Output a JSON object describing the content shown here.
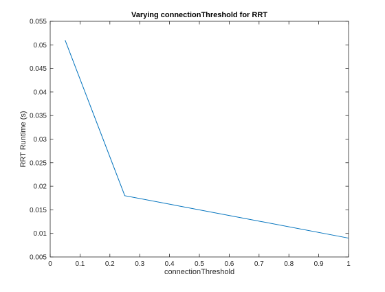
{
  "chart_data": {
    "type": "line",
    "title": "Varying connectionThreshold for RRT",
    "xlabel": "connectionThreshold",
    "ylabel": "RRT Runtime (s)",
    "xlim": [
      0,
      1
    ],
    "ylim": [
      0.005,
      0.055
    ],
    "xticks": [
      "0",
      "0.1",
      "0.2",
      "0.3",
      "0.4",
      "0.5",
      "0.6",
      "0.7",
      "0.8",
      "0.9",
      "1"
    ],
    "yticks": [
      "0.005",
      "0.01",
      "0.015",
      "0.02",
      "0.025",
      "0.03",
      "0.035",
      "0.04",
      "0.045",
      "0.05",
      "0.055"
    ],
    "grid": false,
    "series": [
      {
        "color": "#0072bd",
        "x": [
          0.05,
          0.25,
          1.0
        ],
        "y": [
          0.051,
          0.018,
          0.009
        ]
      }
    ]
  }
}
